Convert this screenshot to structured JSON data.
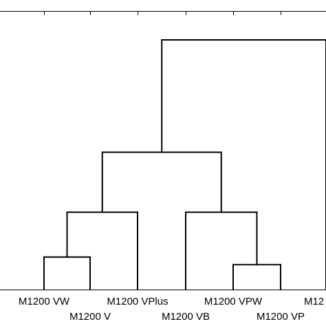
{
  "chart_data": {
    "type": "dendrogram",
    "leaves": [
      {
        "id": "vw",
        "label": "M1200 VW"
      },
      {
        "id": "v",
        "label": "M1200 V"
      },
      {
        "id": "vplus",
        "label": "M1200 VPlus"
      },
      {
        "id": "vb",
        "label": "M1200 VB"
      },
      {
        "id": "vpw",
        "label": "M1200 VPW"
      },
      {
        "id": "vp",
        "label": "M1200 VP"
      },
      {
        "id": "m12_cut",
        "label": "M12"
      }
    ],
    "links": [
      {
        "name": "link-vw-v",
        "left": "vw",
        "right": "v",
        "height": 0.13
      },
      {
        "name": "link-vw-vplus",
        "left": "vw",
        "right": "vplus",
        "height": 0.31
      },
      {
        "name": "link-vpw-vp",
        "left": "vpw",
        "right": "vp",
        "height": 0.1
      },
      {
        "name": "link-vb-vpw",
        "left": "vb",
        "right": "vpw",
        "height": 0.31
      },
      {
        "name": "link-left-right",
        "left": "vw",
        "right": "vb",
        "height": 0.55
      },
      {
        "name": "link-top",
        "left": "vplus",
        "right": "m12_cut",
        "height": 1.0
      }
    ]
  }
}
